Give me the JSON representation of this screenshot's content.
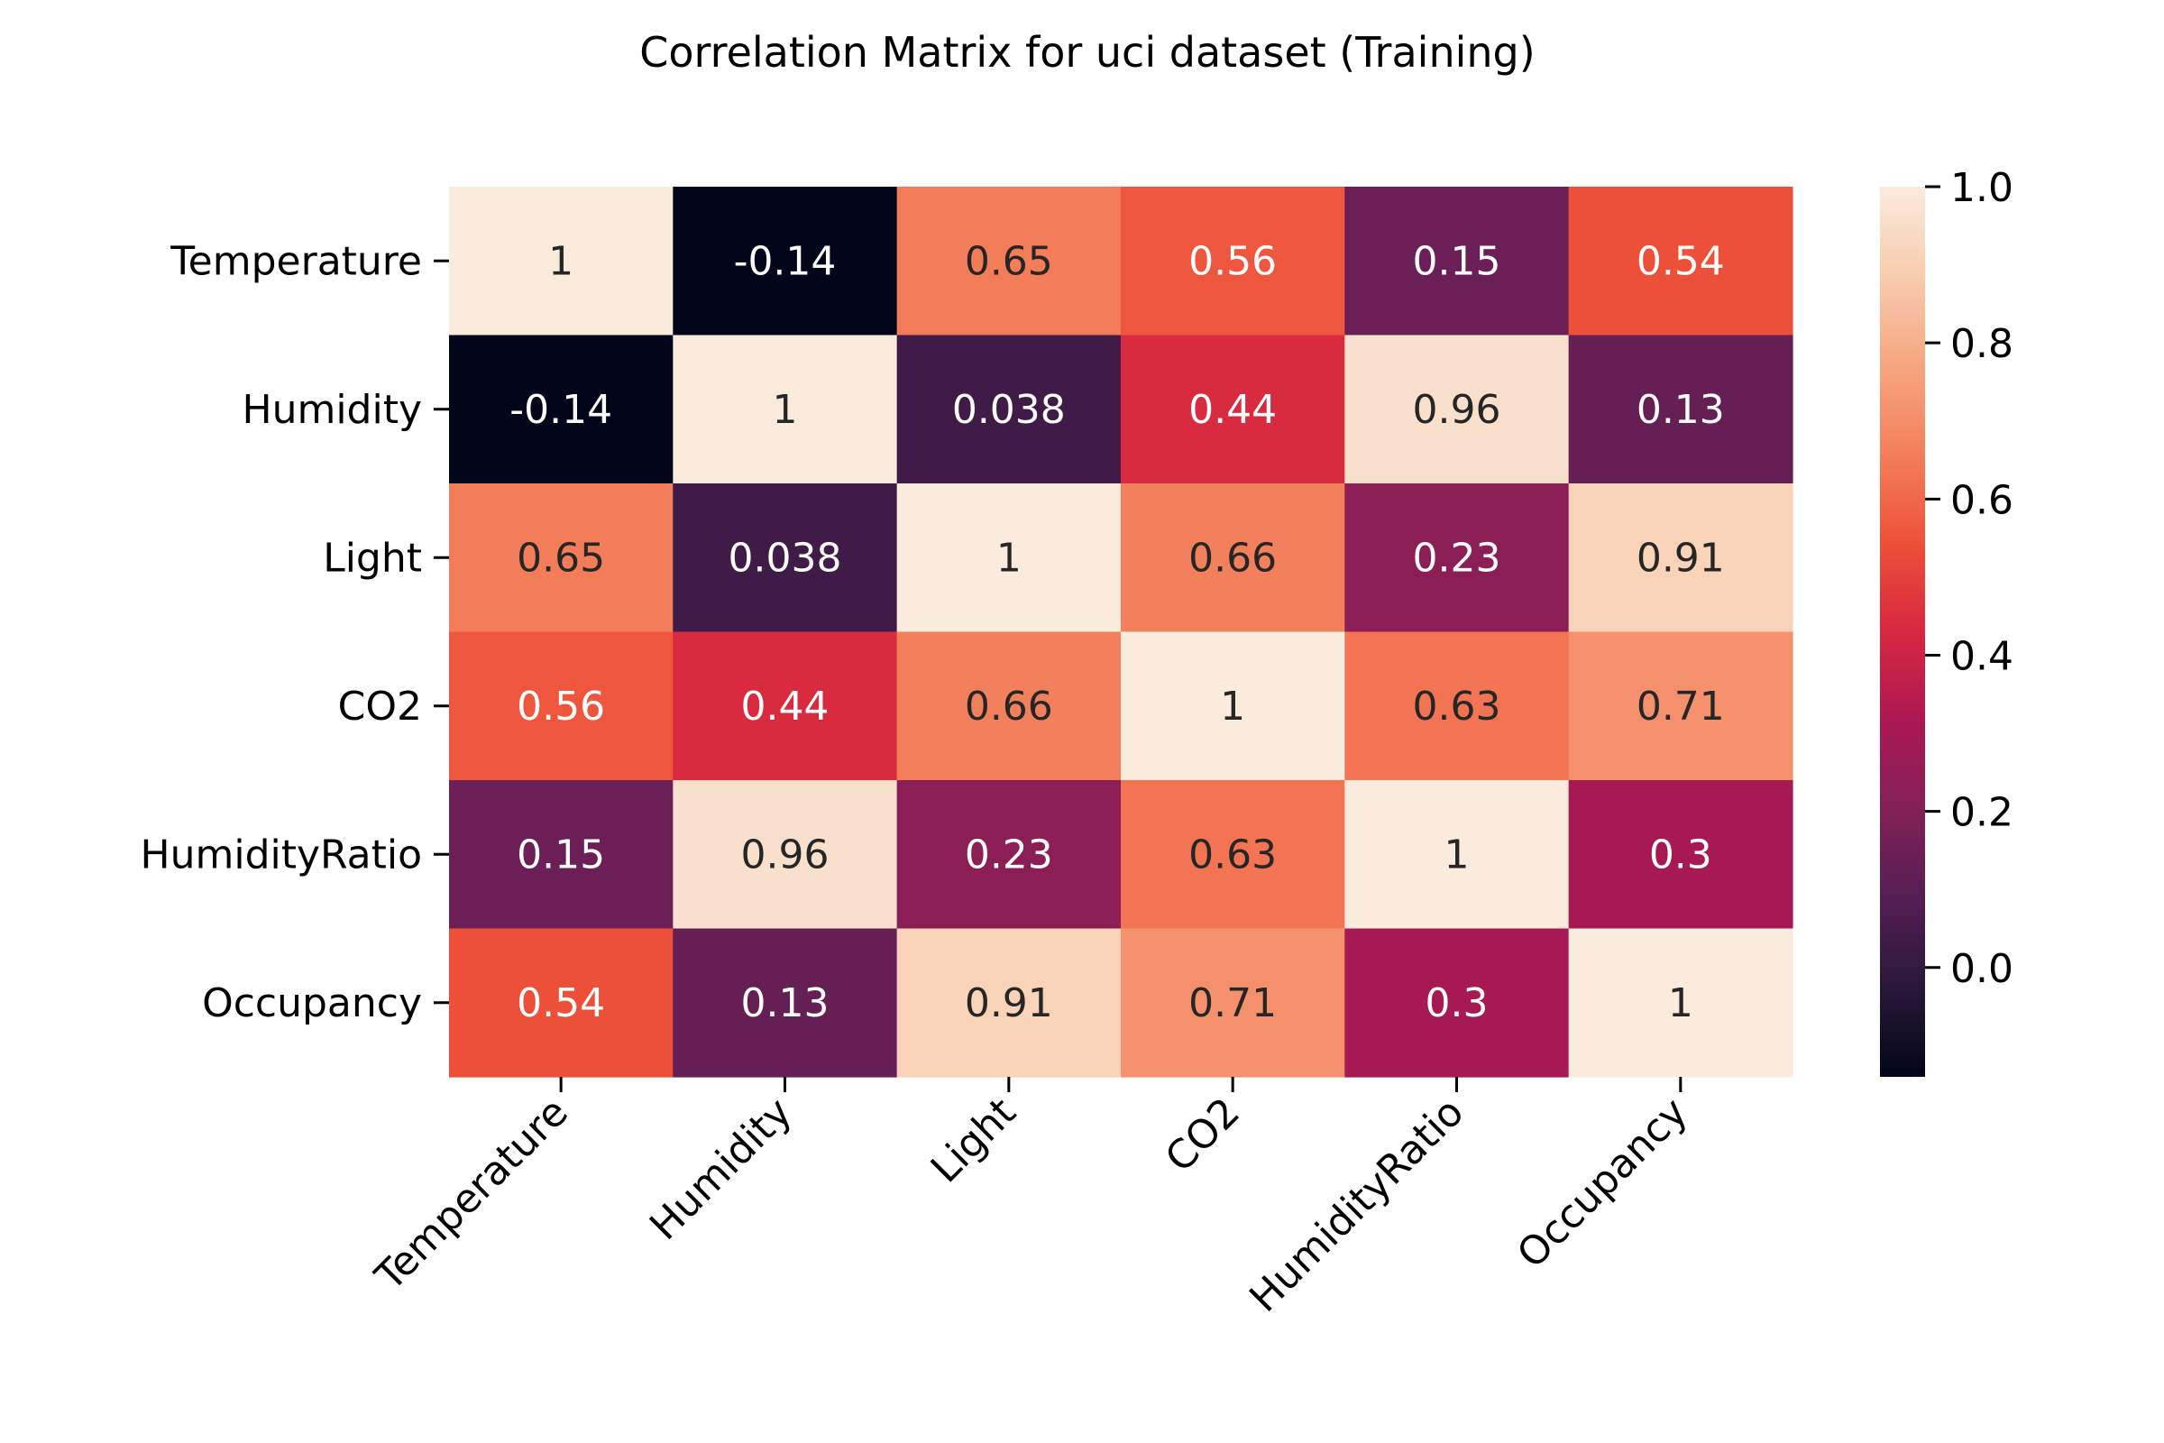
{
  "chart_data": {
    "type": "heatmap",
    "title": "Correlation Matrix for uci dataset (Training)",
    "xlabel": "",
    "ylabel": "",
    "row_labels": [
      "Temperature",
      "Humidity",
      "Light",
      "CO2",
      "HumidityRatio",
      "Occupancy"
    ],
    "col_labels": [
      "Temperature",
      "Humidity",
      "Light",
      "CO2",
      "HumidityRatio",
      "Occupancy"
    ],
    "values": [
      [
        1,
        -0.14,
        0.65,
        0.56,
        0.15,
        0.54
      ],
      [
        -0.14,
        1,
        0.038,
        0.44,
        0.96,
        0.13
      ],
      [
        0.65,
        0.038,
        1,
        0.66,
        0.23,
        0.91
      ],
      [
        0.56,
        0.44,
        0.66,
        1,
        0.63,
        0.71
      ],
      [
        0.15,
        0.96,
        0.23,
        0.63,
        1,
        0.3
      ],
      [
        0.54,
        0.13,
        0.91,
        0.71,
        0.3,
        1
      ]
    ],
    "cell_labels": [
      [
        "1",
        "-0.14",
        "0.65",
        "0.56",
        "0.15",
        "0.54"
      ],
      [
        "-0.14",
        "1",
        "0.038",
        "0.44",
        "0.96",
        "0.13"
      ],
      [
        "0.65",
        "0.038",
        "1",
        "0.66",
        "0.23",
        "0.91"
      ],
      [
        "0.56",
        "0.44",
        "0.66",
        "1",
        "0.63",
        "0.71"
      ],
      [
        "0.15",
        "0.96",
        "0.23",
        "0.63",
        "1",
        "0.3"
      ],
      [
        "0.54",
        "0.13",
        "0.91",
        "0.71",
        "0.3",
        "1"
      ]
    ],
    "colormap": "rocket",
    "color_range": [
      -0.14,
      1.0
    ],
    "colorbar_ticks": [
      "0.0",
      "0.2",
      "0.4",
      "0.6",
      "0.8",
      "1.0"
    ],
    "colorbar_tick_values": [
      0.0,
      0.2,
      0.4,
      0.6,
      0.8,
      1.0
    ],
    "x_tick_rotation_deg": 45,
    "colorbar_position": "right",
    "grid": false
  }
}
